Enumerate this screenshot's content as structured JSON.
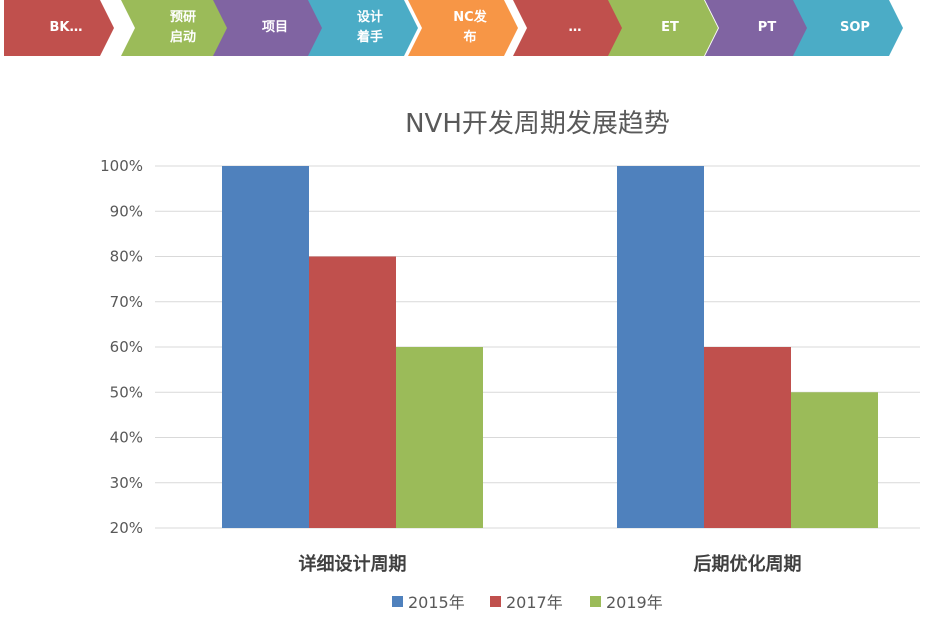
{
  "process_steps": [
    {
      "label": "BK…",
      "color": "#c0504d"
    },
    {
      "label": "预研\n启动",
      "color": "#9bbb59"
    },
    {
      "label": "项目",
      "color": "#8064a2"
    },
    {
      "label": "设计\n着手",
      "color": "#4bacc6"
    },
    {
      "label": "NC发\n布",
      "color": "#f79646"
    },
    {
      "label": "…",
      "color": "#c0504d"
    },
    {
      "label": "ET",
      "color": "#9bbb59"
    },
    {
      "label": "PT",
      "color": "#8064a2"
    },
    {
      "label": "SOP",
      "color": "#4bacc6"
    }
  ],
  "chart_data": {
    "type": "bar",
    "title": "NVH开发周期发展趋势",
    "categories": [
      "详细设计周期",
      "后期优化周期"
    ],
    "series": [
      {
        "name": "2015年",
        "values": [
          100,
          100
        ],
        "color": "#4f81bd"
      },
      {
        "name": "2017年",
        "values": [
          80,
          60
        ],
        "color": "#c0504d"
      },
      {
        "name": "2019年",
        "values": [
          60,
          50
        ],
        "color": "#9bbb59"
      }
    ],
    "ylim": [
      20,
      100
    ],
    "yticks": [
      "20%",
      "30%",
      "40%",
      "50%",
      "60%",
      "70%",
      "80%",
      "90%",
      "100%"
    ],
    "grid": true,
    "legend": "bottom"
  }
}
